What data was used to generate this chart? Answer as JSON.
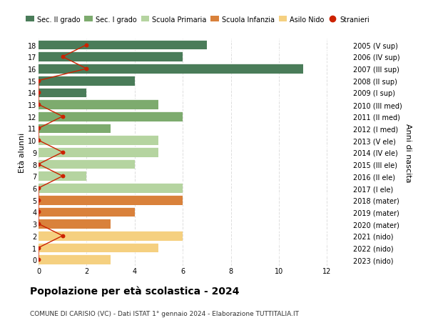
{
  "ages": [
    18,
    17,
    16,
    15,
    14,
    13,
    12,
    11,
    10,
    9,
    8,
    7,
    6,
    5,
    4,
    3,
    2,
    1,
    0
  ],
  "right_labels": [
    "2005 (V sup)",
    "2006 (IV sup)",
    "2007 (III sup)",
    "2008 (II sup)",
    "2009 (I sup)",
    "2010 (III med)",
    "2011 (II med)",
    "2012 (I med)",
    "2013 (V ele)",
    "2014 (IV ele)",
    "2015 (III ele)",
    "2016 (II ele)",
    "2017 (I ele)",
    "2018 (mater)",
    "2019 (mater)",
    "2020 (mater)",
    "2021 (nido)",
    "2022 (nido)",
    "2023 (nido)"
  ],
  "bar_values": [
    7,
    6,
    11,
    4,
    2,
    5,
    6,
    3,
    5,
    5,
    4,
    2,
    6,
    6,
    4,
    3,
    6,
    5,
    3
  ],
  "bar_colors": [
    "#4a7c59",
    "#4a7c59",
    "#4a7c59",
    "#4a7c59",
    "#4a7c59",
    "#7dab6e",
    "#7dab6e",
    "#7dab6e",
    "#b5d4a0",
    "#b5d4a0",
    "#b5d4a0",
    "#b5d4a0",
    "#b5d4a0",
    "#d9813b",
    "#d9813b",
    "#d9813b",
    "#f5d080",
    "#f5d080",
    "#f5d080"
  ],
  "stranieri_x": [
    2,
    1,
    2,
    0,
    0,
    0,
    1,
    0,
    0,
    1,
    0,
    1,
    0,
    0,
    0,
    0,
    1,
    0,
    0
  ],
  "legend_labels": [
    "Sec. II grado",
    "Sec. I grado",
    "Scuola Primaria",
    "Scuola Infanzia",
    "Asilo Nido",
    "Stranieri"
  ],
  "legend_colors": [
    "#4a7c59",
    "#7dab6e",
    "#b5d4a0",
    "#d9813b",
    "#f5d080",
    "#cc2200"
  ],
  "title_bold": "Popolazione per età scolastica - 2024",
  "subtitle": "COMUNE DI CARISIO (VC) - Dati ISTAT 1° gennaio 2024 - Elaborazione TUTTITALIA.IT",
  "ylabel": "Età alunni",
  "right_ylabel": "Anni di nascita",
  "xlim": [
    0,
    13
  ],
  "xticks": [
    0,
    2,
    4,
    6,
    8,
    10,
    12
  ],
  "background_color": "#ffffff",
  "grid_color": "#dddddd"
}
